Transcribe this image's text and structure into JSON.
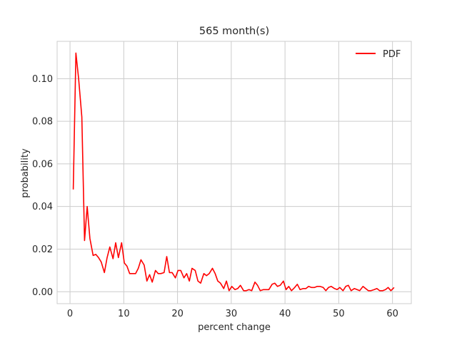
{
  "chart_data": {
    "type": "line",
    "title": "565 month(s)",
    "xlabel": "percent change",
    "ylabel": "probability",
    "xlim": [
      -2.4,
      63.5
    ],
    "ylim": [
      -0.0056,
      0.1175
    ],
    "grid": true,
    "legend_placement": "top-right",
    "x_ticks": [
      0,
      10,
      20,
      30,
      40,
      50,
      60
    ],
    "x_tick_labels": [
      "0",
      "10",
      "20",
      "30",
      "40",
      "50",
      "60"
    ],
    "y_ticks": [
      0.0,
      0.02,
      0.04,
      0.06,
      0.08,
      0.1
    ],
    "y_tick_labels": [
      "0.00",
      "0.02",
      "0.04",
      "0.06",
      "0.08",
      "0.10"
    ],
    "series": [
      {
        "name": "PDF",
        "color": "#ff0000",
        "x": [
          0.6,
          1.1,
          1.6,
          2.2,
          2.7,
          3.2,
          3.7,
          4.3,
          4.8,
          5.3,
          5.8,
          6.4,
          6.9,
          7.4,
          8.0,
          8.5,
          9.0,
          9.6,
          10.1,
          10.6,
          11.1,
          11.6,
          12.2,
          12.7,
          13.2,
          13.8,
          14.3,
          14.8,
          15.3,
          15.9,
          16.4,
          16.9,
          17.5,
          18.0,
          18.5,
          19.0,
          19.6,
          20.1,
          20.6,
          21.2,
          21.7,
          22.2,
          22.7,
          23.3,
          23.8,
          24.3,
          24.9,
          25.4,
          25.9,
          26.5,
          27.0,
          27.5,
          28.0,
          28.6,
          29.1,
          29.6,
          30.1,
          30.7,
          31.2,
          31.7,
          32.3,
          32.8,
          33.3,
          33.8,
          34.4,
          34.9,
          35.4,
          36.0,
          36.5,
          37.0,
          37.6,
          38.1,
          38.6,
          39.1,
          39.7,
          40.2,
          40.7,
          41.2,
          41.8,
          42.3,
          42.8,
          43.4,
          43.9,
          44.4,
          44.9,
          45.5,
          46.0,
          46.5,
          47.1,
          47.6,
          48.1,
          48.6,
          49.2,
          49.7,
          50.2,
          50.8,
          51.3,
          51.8,
          52.3,
          52.9,
          53.4,
          53.9,
          54.5,
          55.0,
          55.5,
          56.0,
          56.6,
          57.1,
          57.6,
          58.2,
          58.7,
          59.2,
          59.7,
          60.3
        ],
        "y": [
          0.048,
          0.112,
          0.1,
          0.082,
          0.024,
          0.04,
          0.025,
          0.017,
          0.0175,
          0.016,
          0.014,
          0.009,
          0.016,
          0.021,
          0.0155,
          0.023,
          0.016,
          0.023,
          0.0135,
          0.012,
          0.0085,
          0.0085,
          0.0085,
          0.011,
          0.015,
          0.0125,
          0.005,
          0.008,
          0.0045,
          0.01,
          0.0085,
          0.0085,
          0.009,
          0.0165,
          0.009,
          0.009,
          0.0065,
          0.01,
          0.01,
          0.0065,
          0.0085,
          0.005,
          0.011,
          0.01,
          0.005,
          0.004,
          0.0085,
          0.0075,
          0.0085,
          0.011,
          0.0085,
          0.005,
          0.004,
          0.0015,
          0.005,
          0.0005,
          0.0025,
          0.001,
          0.0015,
          0.003,
          0.0005,
          0.0005,
          0.001,
          0.0005,
          0.0045,
          0.003,
          0.0005,
          0.001,
          0.001,
          0.001,
          0.0035,
          0.004,
          0.0025,
          0.003,
          0.005,
          0.001,
          0.0025,
          0.0005,
          0.002,
          0.0035,
          0.001,
          0.0015,
          0.0015,
          0.0025,
          0.002,
          0.002,
          0.0025,
          0.0025,
          0.002,
          0.0005,
          0.002,
          0.0025,
          0.0015,
          0.001,
          0.002,
          0.0005,
          0.0025,
          0.003,
          0.0005,
          0.0015,
          0.001,
          0.0005,
          0.0025,
          0.0015,
          0.0005,
          0.0005,
          0.001,
          0.0015,
          0.0005,
          0.0005,
          0.001,
          0.002,
          0.0005,
          0.002
        ]
      }
    ]
  }
}
